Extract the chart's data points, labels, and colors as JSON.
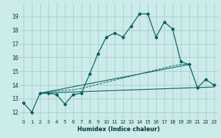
{
  "xlabel": "Humidex (Indice chaleur)",
  "bg_color": "#cceaea",
  "grid_color": "#aacccc",
  "line_color": "#006060",
  "xlim": [
    -0.5,
    23.5
  ],
  "ylim": [
    11.5,
    20.0
  ],
  "xticks": [
    0,
    1,
    2,
    3,
    4,
    5,
    6,
    7,
    8,
    9,
    10,
    11,
    12,
    13,
    14,
    15,
    16,
    17,
    18,
    19,
    20,
    21,
    22,
    23
  ],
  "yticks": [
    12,
    13,
    14,
    15,
    16,
    17,
    18,
    19
  ],
  "series1_x": [
    0,
    1,
    2,
    3,
    4,
    5,
    6,
    7,
    8,
    9,
    10,
    11,
    12,
    13,
    14,
    15,
    16,
    17,
    18,
    19,
    20,
    21,
    22,
    23
  ],
  "series1_y": [
    12.7,
    12.0,
    13.4,
    13.4,
    13.3,
    12.6,
    13.3,
    13.4,
    14.8,
    16.3,
    17.5,
    17.8,
    17.5,
    18.3,
    19.2,
    19.2,
    17.5,
    18.6,
    18.1,
    15.7,
    15.5,
    13.8,
    14.4,
    14.0
  ],
  "series2_x": [
    2,
    23
  ],
  "series2_y": [
    13.4,
    13.85
  ],
  "series3_x": [
    2,
    20
  ],
  "series3_y": [
    13.4,
    15.5
  ],
  "series4_x": [
    2,
    3,
    4,
    5,
    6,
    7,
    8,
    9,
    10,
    11,
    12,
    13,
    14,
    15,
    16,
    17,
    18,
    19,
    20
  ],
  "series4_y": [
    13.4,
    13.5,
    13.55,
    13.6,
    13.65,
    13.75,
    13.9,
    14.05,
    14.2,
    14.35,
    14.5,
    14.65,
    14.8,
    14.95,
    15.1,
    15.25,
    15.4,
    15.5,
    15.5
  ]
}
